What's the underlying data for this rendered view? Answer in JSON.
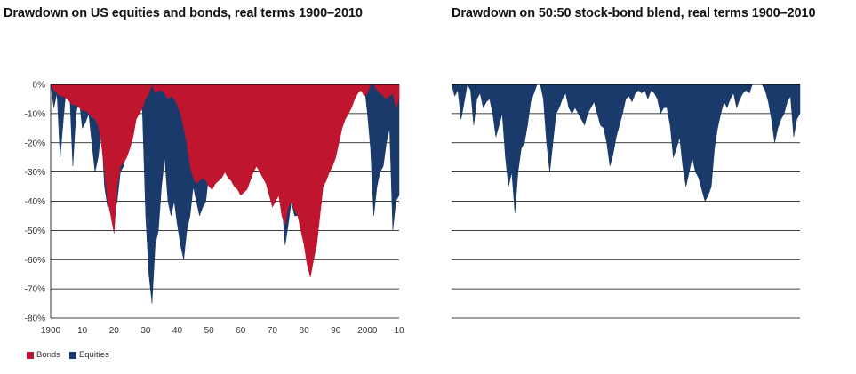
{
  "chart_data": [
    {
      "type": "area",
      "title": "Drawdown on US equities and bonds, real terms 1900–2010",
      "xlabel": "",
      "ylabel": "",
      "xlim": [
        1900,
        2010
      ],
      "ylim": [
        -80,
        0
      ],
      "yticks": [
        "0%",
        "-10%",
        "-20%",
        "-30%",
        "-40%",
        "-50%",
        "-60%",
        "-70%",
        "-80%"
      ],
      "xticks": [
        "1900",
        "10",
        "20",
        "30",
        "40",
        "50",
        "60",
        "70",
        "80",
        "90",
        "2000",
        "10"
      ],
      "grid": true,
      "legend": "bottom-left",
      "series": [
        {
          "name": "Equities",
          "color": "#1a3a6b",
          "x": [
            1900,
            1901,
            1902,
            1903,
            1904,
            1905,
            1906,
            1907,
            1908,
            1909,
            1910,
            1911,
            1912,
            1913,
            1914,
            1915,
            1916,
            1917,
            1918,
            1919,
            1920,
            1921,
            1922,
            1923,
            1924,
            1925,
            1926,
            1927,
            1928,
            1929,
            1930,
            1931,
            1932,
            1933,
            1934,
            1935,
            1936,
            1937,
            1938,
            1939,
            1940,
            1941,
            1942,
            1943,
            1944,
            1945,
            1946,
            1947,
            1948,
            1949,
            1950,
            1951,
            1952,
            1953,
            1954,
            1955,
            1956,
            1957,
            1958,
            1959,
            1960,
            1961,
            1962,
            1963,
            1964,
            1965,
            1966,
            1967,
            1968,
            1969,
            1970,
            1971,
            1972,
            1973,
            1974,
            1975,
            1976,
            1977,
            1978,
            1979,
            1980,
            1981,
            1982,
            1983,
            1984,
            1985,
            1986,
            1987,
            1988,
            1989,
            1990,
            1991,
            1992,
            1993,
            1994,
            1995,
            1996,
            1997,
            1998,
            1999,
            2000,
            2001,
            2002,
            2003,
            2004,
            2005,
            2006,
            2007,
            2008,
            2009,
            2010
          ],
          "values": [
            0,
            -8,
            -3,
            -25,
            -12,
            0,
            -3,
            -28,
            -10,
            -5,
            -15,
            -13,
            -10,
            -20,
            -30,
            -25,
            -15,
            -35,
            -42,
            -35,
            -45,
            -40,
            -30,
            -28,
            -20,
            -10,
            -5,
            0,
            0,
            -10,
            -45,
            -65,
            -75,
            -55,
            -50,
            -35,
            -25,
            -40,
            -45,
            -40,
            -48,
            -55,
            -60,
            -50,
            -45,
            -35,
            -40,
            -45,
            -42,
            -40,
            -30,
            -25,
            -18,
            -20,
            -10,
            0,
            -3,
            -10,
            -3,
            0,
            -3,
            0,
            -8,
            -3,
            0,
            0,
            -12,
            -5,
            -3,
            -18,
            -30,
            -20,
            -15,
            -40,
            -55,
            -48,
            -40,
            -45,
            -45,
            -40,
            -35,
            -40,
            -38,
            -25,
            -25,
            -15,
            -5,
            -10,
            -8,
            -3,
            -10,
            -5,
            -3,
            0,
            -3,
            0,
            0,
            0,
            0,
            0,
            -10,
            -22,
            -45,
            -35,
            -30,
            -28,
            -20,
            -15,
            -50,
            -40,
            -38
          ]
        },
        {
          "name": "Bonds",
          "color": "#c0152f",
          "x": [
            1900,
            1901,
            1902,
            1903,
            1904,
            1905,
            1906,
            1907,
            1908,
            1909,
            1910,
            1911,
            1912,
            1913,
            1914,
            1915,
            1916,
            1917,
            1918,
            1919,
            1920,
            1921,
            1922,
            1923,
            1924,
            1925,
            1926,
            1927,
            1928,
            1929,
            1930,
            1931,
            1932,
            1933,
            1934,
            1935,
            1936,
            1937,
            1938,
            1939,
            1940,
            1941,
            1942,
            1943,
            1944,
            1945,
            1946,
            1947,
            1948,
            1949,
            1950,
            1951,
            1952,
            1953,
            1954,
            1955,
            1956,
            1957,
            1958,
            1959,
            1960,
            1961,
            1962,
            1963,
            1964,
            1965,
            1966,
            1967,
            1968,
            1969,
            1970,
            1971,
            1972,
            1973,
            1974,
            1975,
            1976,
            1977,
            1978,
            1979,
            1980,
            1981,
            1982,
            1983,
            1984,
            1985,
            1986,
            1987,
            1988,
            1989,
            1990,
            1991,
            1992,
            1993,
            1994,
            1995,
            1996,
            1997,
            1998,
            1999,
            2000,
            2001,
            2002,
            2003,
            2004,
            2005,
            2006,
            2007,
            2008,
            2009,
            2010
          ],
          "values": [
            0,
            -2,
            -3,
            -4,
            -4,
            -5,
            -6,
            -7,
            -7,
            -8,
            -9,
            -9,
            -10,
            -11,
            -12,
            -14,
            -20,
            -30,
            -40,
            -45,
            -51,
            -35,
            -28,
            -27,
            -25,
            -22,
            -18,
            -12,
            -10,
            -8,
            -5,
            -3,
            0,
            -3,
            -2,
            -2,
            -3,
            -5,
            -4,
            -5,
            -7,
            -10,
            -15,
            -20,
            -28,
            -32,
            -34,
            -33,
            -32,
            -33,
            -35,
            -36,
            -34,
            -33,
            -32,
            -30,
            -32,
            -33,
            -35,
            -36,
            -38,
            -37,
            -36,
            -33,
            -30,
            -28,
            -30,
            -32,
            -34,
            -38,
            -42,
            -40,
            -38,
            -45,
            -48,
            -42,
            -40,
            -43,
            -45,
            -50,
            -55,
            -62,
            -66,
            -60,
            -55,
            -45,
            -35,
            -33,
            -30,
            -28,
            -25,
            -20,
            -15,
            -12,
            -10,
            -8,
            -5,
            -3,
            -2,
            -4,
            -3,
            0,
            0,
            -2,
            -3,
            -4,
            -5,
            -4,
            -3,
            -8,
            -5
          ]
        }
      ]
    },
    {
      "type": "area",
      "title": "Drawdown on 50:50 stock-bond blend, real terms 1900–2010",
      "xlabel": "",
      "ylabel": "",
      "xlim": [
        1900,
        2010
      ],
      "ylim": [
        -80,
        0
      ],
      "grid": true,
      "series": [
        {
          "color": "#1a3a6b",
          "x": [
            1900,
            1901,
            1902,
            1903,
            1904,
            1905,
            1906,
            1907,
            1908,
            1909,
            1910,
            1911,
            1912,
            1913,
            1914,
            1915,
            1916,
            1917,
            1918,
            1919,
            1920,
            1921,
            1922,
            1923,
            1924,
            1925,
            1926,
            1927,
            1928,
            1929,
            1930,
            1931,
            1932,
            1933,
            1934,
            1935,
            1936,
            1937,
            1938,
            1939,
            1940,
            1941,
            1942,
            1943,
            1944,
            1945,
            1946,
            1947,
            1948,
            1949,
            1950,
            1951,
            1952,
            1953,
            1954,
            1955,
            1956,
            1957,
            1958,
            1959,
            1960,
            1961,
            1962,
            1963,
            1964,
            1965,
            1966,
            1967,
            1968,
            1969,
            1970,
            1971,
            1972,
            1973,
            1974,
            1975,
            1976,
            1977,
            1978,
            1979,
            1980,
            1981,
            1982,
            1983,
            1984,
            1985,
            1986,
            1987,
            1988,
            1989,
            1990,
            1991,
            1992,
            1993,
            1994,
            1995,
            1996,
            1997,
            1998,
            1999,
            2000,
            2001,
            2002,
            2003,
            2004,
            2005,
            2006,
            2007,
            2008,
            2009,
            2010
          ],
          "values": [
            0,
            -4,
            -2,
            -12,
            -6,
            0,
            -2,
            -14,
            -5,
            -3,
            -8,
            -6,
            -5,
            -10,
            -18,
            -14,
            -10,
            -25,
            -35,
            -30,
            -44,
            -30,
            -22,
            -20,
            -14,
            -6,
            -3,
            0,
            0,
            -5,
            -20,
            -30,
            -20,
            -10,
            -8,
            -5,
            -3,
            -8,
            -10,
            -8,
            -10,
            -12,
            -14,
            -10,
            -8,
            -6,
            -10,
            -14,
            -15,
            -20,
            -28,
            -24,
            -18,
            -14,
            -10,
            -5,
            -4,
            -6,
            -3,
            -2,
            -3,
            -2,
            -5,
            -2,
            -3,
            -5,
            -10,
            -8,
            -8,
            -14,
            -25,
            -22,
            -18,
            -28,
            -35,
            -30,
            -25,
            -30,
            -32,
            -36,
            -40,
            -38,
            -35,
            -22,
            -15,
            -10,
            -6,
            -8,
            -5,
            -3,
            -8,
            -5,
            -3,
            -2,
            -3,
            0,
            0,
            0,
            0,
            -2,
            -6,
            -12,
            -20,
            -15,
            -12,
            -10,
            -6,
            -4,
            -18,
            -12,
            -10
          ]
        }
      ]
    }
  ],
  "colors": {
    "equities": "#1a3a6b",
    "bonds": "#c0152f",
    "grid": "#000000"
  }
}
